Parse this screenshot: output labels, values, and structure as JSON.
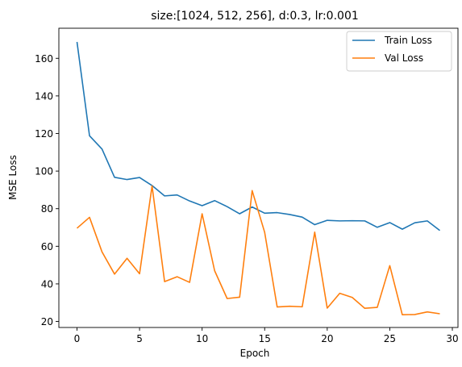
{
  "chart_data": {
    "type": "line",
    "title": "size:[1024, 512, 256], d:0.3, lr:0.001",
    "xlabel": "Epoch",
    "ylabel": "MSE Loss",
    "xlim": [
      -1.45,
      30.45
    ],
    "ylim": [
      16.8,
      176
    ],
    "xticks": [
      0,
      5,
      10,
      15,
      20,
      25,
      30
    ],
    "yticks": [
      20,
      40,
      60,
      80,
      100,
      120,
      140,
      160
    ],
    "grid": false,
    "legend_position": "top-right",
    "x": [
      0,
      1,
      2,
      3,
      4,
      5,
      6,
      7,
      8,
      9,
      10,
      11,
      12,
      13,
      14,
      15,
      16,
      17,
      18,
      19,
      20,
      21,
      22,
      23,
      24,
      25,
      26,
      27,
      28,
      29
    ],
    "series": [
      {
        "name": "Train Loss",
        "color": "#1f77b4",
        "values": [
          168.7,
          118.8,
          111.7,
          96.7,
          95.5,
          96.6,
          92.3,
          86.8,
          87.3,
          84.1,
          81.6,
          84.3,
          81.1,
          77.3,
          80.9,
          77.6,
          77.9,
          76.9,
          75.5,
          71.5,
          73.8,
          73.5,
          73.6,
          73.5,
          70.1,
          72.6,
          69.1,
          72.5,
          73.5,
          68.4
        ]
      },
      {
        "name": "Val Loss",
        "color": "#ff7f0e",
        "values": [
          69.6,
          75.4,
          57.0,
          45.2,
          53.6,
          45.4,
          92.1,
          41.2,
          43.8,
          40.8,
          77.3,
          47.0,
          32.2,
          32.9,
          89.6,
          67.4,
          27.7,
          28.1,
          27.8,
          67.5,
          27.1,
          35.0,
          32.8,
          27.0,
          27.5,
          49.7,
          23.6,
          23.7,
          25.1,
          24.1
        ]
      }
    ]
  }
}
